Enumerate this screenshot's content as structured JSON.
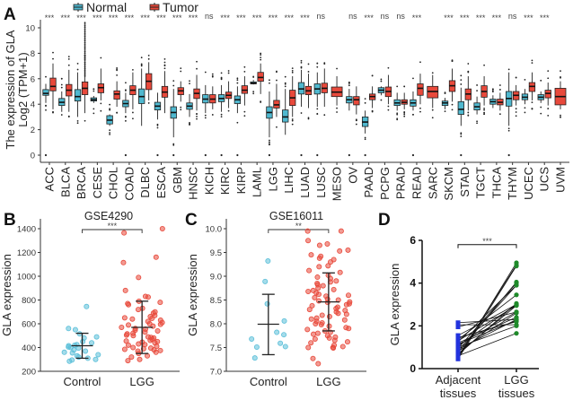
{
  "chart_data": [
    {
      "panel": "A",
      "type": "box",
      "title": "",
      "xlabel": "",
      "ylabel": "The expression of GLA\nLog2 (TPM+1)",
      "ylabel_lines": [
        "The expression of GLA",
        "Log2 (TPM+1)"
      ],
      "ylim": [
        0,
        11
      ],
      "yticks": [
        0,
        2,
        4,
        6,
        8,
        10
      ],
      "legend": {
        "position": "top",
        "entries": [
          {
            "name": "Normal",
            "color": "#4fb8cf"
          },
          {
            "name": "Tumor",
            "color": "#e8493b"
          }
        ]
      },
      "categories": [
        "ACC",
        "BLCA",
        "BRCA",
        "CESE",
        "CHOL",
        "COAD",
        "DLBC",
        "ESCA",
        "GBM",
        "HNSC",
        "KICH",
        "KIRC",
        "KIRP",
        "LAML",
        "LGG",
        "LIHC",
        "LUAD",
        "LUSC",
        "MESO",
        "OV",
        "PAAD",
        "PCPG",
        "PRAD",
        "READ",
        "SARC",
        "SKCM",
        "STAD",
        "TGCT",
        "THCA",
        "THYM",
        "UCEC",
        "UCS",
        "UVM"
      ],
      "significance": [
        "***",
        "***",
        "***",
        "***",
        "***",
        "***",
        "***",
        "***",
        "***",
        "***",
        "ns",
        "***",
        "***",
        "***",
        "***",
        "***",
        "***",
        "ns",
        "",
        "ns",
        "***",
        "ns",
        "ns",
        "***",
        "",
        "***",
        "***",
        "***",
        "***",
        "ns",
        "***",
        "***",
        ""
      ],
      "series": [
        {
          "name": "Normal",
          "boxes": [
            {
              "q1": 4.7,
              "median": 4.85,
              "q3": 5.15,
              "wlo": 4.1,
              "whi": 5.6
            },
            {
              "q1": 3.9,
              "median": 4.15,
              "q3": 4.45,
              "wlo": 3.4,
              "whi": 5.0
            },
            {
              "q1": 4.25,
              "median": 4.6,
              "q3": 5.15,
              "wlo": 3.0,
              "whi": 6.5
            },
            {
              "q1": 4.25,
              "median": 4.35,
              "q3": 4.5,
              "wlo": 4.1,
              "whi": 4.65
            },
            {
              "q1": 2.45,
              "median": 2.75,
              "q3": 3.1,
              "wlo": 2.3,
              "whi": 3.2
            },
            {
              "q1": 3.8,
              "median": 4.05,
              "q3": 4.3,
              "wlo": 3.3,
              "whi": 4.9
            },
            {
              "q1": 4.05,
              "median": 4.6,
              "q3": 5.2,
              "wlo": 2.3,
              "whi": 6.8
            },
            {
              "q1": 3.55,
              "median": 3.85,
              "q3": 4.15,
              "wlo": 2.8,
              "whi": 4.9
            },
            {
              "q1": 2.9,
              "median": 3.35,
              "q3": 3.8,
              "wlo": 1.4,
              "whi": 5.2
            },
            {
              "q1": 3.6,
              "median": 3.85,
              "q3": 4.1,
              "wlo": 3.0,
              "whi": 4.8
            },
            {
              "q1": 4.1,
              "median": 4.4,
              "q3": 4.75,
              "wlo": 3.3,
              "whi": 5.5
            },
            {
              "q1": 4.2,
              "median": 4.45,
              "q3": 4.75,
              "wlo": 3.4,
              "whi": 5.5
            },
            {
              "q1": 4.05,
              "median": 4.35,
              "q3": 4.65,
              "wlo": 3.3,
              "whi": 5.4
            },
            {
              "q1": 5.6,
              "median": 5.65,
              "q3": 5.75,
              "wlo": 5.55,
              "whi": 5.9
            },
            {
              "q1": 2.9,
              "median": 3.35,
              "q3": 3.8,
              "wlo": 1.4,
              "whi": 5.0
            },
            {
              "q1": 2.6,
              "median": 3.0,
              "q3": 3.55,
              "wlo": 1.6,
              "whi": 5.2
            },
            {
              "q1": 4.8,
              "median": 5.2,
              "q3": 5.7,
              "wlo": 3.8,
              "whi": 6.7
            },
            {
              "q1": 4.8,
              "median": 5.2,
              "q3": 5.6,
              "wlo": 3.8,
              "whi": 6.5
            },
            null,
            {
              "q1": 4.1,
              "median": 4.35,
              "q3": 4.6,
              "wlo": 3.5,
              "whi": 5.2
            },
            {
              "q1": 2.25,
              "median": 2.6,
              "q3": 3.0,
              "wlo": 1.7,
              "whi": 3.5
            },
            {
              "q1": 4.9,
              "median": 5.1,
              "q3": 5.3,
              "wlo": 4.7,
              "whi": 5.4
            },
            {
              "q1": 3.9,
              "median": 4.1,
              "q3": 4.35,
              "wlo": 3.5,
              "whi": 4.9
            },
            {
              "q1": 3.85,
              "median": 4.1,
              "q3": 4.35,
              "wlo": 3.5,
              "whi": 5.0
            },
            null,
            {
              "q1": 3.9,
              "median": 4.1,
              "q3": 4.25,
              "wlo": 3.6,
              "whi": 4.5
            },
            {
              "q1": 3.2,
              "median": 3.6,
              "q3": 4.2,
              "wlo": 2.3,
              "whi": 5.3
            },
            {
              "q1": 3.55,
              "median": 3.8,
              "q3": 4.1,
              "wlo": 3.2,
              "whi": 4.6
            },
            {
              "q1": 4.0,
              "median": 4.2,
              "q3": 4.4,
              "wlo": 3.7,
              "whi": 4.7
            },
            {
              "q1": 3.85,
              "median": 4.45,
              "q3": 5.0,
              "wlo": 2.3,
              "whi": 6.5
            },
            {
              "q1": 4.35,
              "median": 4.55,
              "q3": 4.8,
              "wlo": 4.0,
              "whi": 5.2
            },
            {
              "q1": 4.35,
              "median": 4.55,
              "q3": 4.75,
              "wlo": 4.1,
              "whi": 5.0
            },
            null
          ]
        },
        {
          "name": "Tumor",
          "boxes": [
            {
              "q1": 5.05,
              "median": 5.4,
              "q3": 6.05,
              "wlo": 3.6,
              "whi": 7.2
            },
            {
              "q1": 4.65,
              "median": 5.1,
              "q3": 5.55,
              "wlo": 3.4,
              "whi": 6.7
            },
            {
              "q1": 4.75,
              "median": 5.25,
              "q3": 5.75,
              "wlo": 3.3,
              "whi": 7.3
            },
            {
              "q1": 4.9,
              "median": 5.3,
              "q3": 5.6,
              "wlo": 4.3,
              "whi": 6.8
            },
            {
              "q1": 4.4,
              "median": 4.8,
              "q3": 5.05,
              "wlo": 3.8,
              "whi": 5.8
            },
            {
              "q1": 4.75,
              "median": 5.1,
              "q3": 5.45,
              "wlo": 3.6,
              "whi": 6.5
            },
            {
              "q1": 5.15,
              "median": 5.8,
              "q3": 6.4,
              "wlo": 4.3,
              "whi": 7.3
            },
            {
              "q1": 4.55,
              "median": 4.95,
              "q3": 5.4,
              "wlo": 3.3,
              "whi": 6.6
            },
            {
              "q1": 4.75,
              "median": 5.05,
              "q3": 5.3,
              "wlo": 4.2,
              "whi": 5.8
            },
            {
              "q1": 4.45,
              "median": 4.85,
              "q3": 5.2,
              "wlo": 3.5,
              "whi": 6.3
            },
            {
              "q1": 4.1,
              "median": 4.4,
              "q3": 4.75,
              "wlo": 3.6,
              "whi": 5.4
            },
            {
              "q1": 4.45,
              "median": 4.7,
              "q3": 4.95,
              "wlo": 3.7,
              "whi": 5.8
            },
            {
              "q1": 4.85,
              "median": 5.1,
              "q3": 5.45,
              "wlo": 3.9,
              "whi": 6.2
            },
            {
              "q1": 5.8,
              "median": 6.1,
              "q3": 6.5,
              "wlo": 4.8,
              "whi": 7.2
            },
            {
              "q1": 3.7,
              "median": 3.95,
              "q3": 4.3,
              "wlo": 3.0,
              "whi": 5.6
            },
            {
              "q1": 3.9,
              "median": 4.5,
              "q3": 5.1,
              "wlo": 3.0,
              "whi": 6.2
            },
            {
              "q1": 4.75,
              "median": 5.05,
              "q3": 5.4,
              "wlo": 3.7,
              "whi": 6.4
            },
            {
              "q1": 4.9,
              "median": 5.25,
              "q3": 5.65,
              "wlo": 3.8,
              "whi": 6.8
            },
            {
              "q1": 4.6,
              "median": 4.95,
              "q3": 5.35,
              "wlo": 3.9,
              "whi": 6.2
            },
            {
              "q1": 3.95,
              "median": 4.35,
              "q3": 4.6,
              "wlo": 3.2,
              "whi": 5.4
            },
            {
              "q1": 4.35,
              "median": 4.6,
              "q3": 4.8,
              "wlo": 3.7,
              "whi": 5.4
            },
            {
              "q1": 4.6,
              "median": 5.0,
              "q3": 5.35,
              "wlo": 4.0,
              "whi": 6.3
            },
            {
              "q1": 4.0,
              "median": 4.15,
              "q3": 4.35,
              "wlo": 3.6,
              "whi": 4.9
            },
            {
              "q1": 4.7,
              "median": 5.25,
              "q3": 5.6,
              "wlo": 4.0,
              "whi": 6.4
            },
            {
              "q1": 4.5,
              "median": 5.0,
              "q3": 5.4,
              "wlo": 3.7,
              "whi": 6.3
            },
            {
              "q1": 5.0,
              "median": 5.45,
              "q3": 5.85,
              "wlo": 4.2,
              "whi": 6.8
            },
            {
              "q1": 4.35,
              "median": 4.8,
              "q3": 5.2,
              "wlo": 3.5,
              "whi": 6.2
            },
            {
              "q1": 4.55,
              "median": 5.0,
              "q3": 5.45,
              "wlo": 3.9,
              "whi": 6.2
            },
            {
              "q1": 3.95,
              "median": 4.15,
              "q3": 4.4,
              "wlo": 3.5,
              "whi": 4.9
            },
            {
              "q1": 4.35,
              "median": 4.7,
              "q3": 5.0,
              "wlo": 3.9,
              "whi": 5.5
            },
            {
              "q1": 5.0,
              "median": 5.4,
              "q3": 5.7,
              "wlo": 4.3,
              "whi": 6.5
            },
            {
              "q1": 4.5,
              "median": 4.85,
              "q3": 5.1,
              "wlo": 3.9,
              "whi": 5.7
            },
            {
              "q1": 3.95,
              "median": 4.6,
              "q3": 5.25,
              "wlo": 3.6,
              "whi": 5.8
            }
          ]
        }
      ]
    },
    {
      "panel": "B",
      "type": "scatter",
      "title": "GSE4290",
      "xlabel": "",
      "ylabel": "GLA expression",
      "ylim": [
        200,
        1450
      ],
      "yticks": [
        200,
        400,
        600,
        800,
        1000,
        1200,
        1400
      ],
      "categories": [
        "Control",
        "LGG"
      ],
      "significance": "***",
      "series": [
        {
          "name": "Control",
          "color": "#5bbfd9",
          "mean": 415,
          "sd_low": 310,
          "sd_high": 520,
          "values": [
            745,
            560,
            550,
            515,
            490,
            480,
            450,
            440,
            425,
            420,
            415,
            405,
            400,
            395,
            380,
            370,
            360,
            355,
            340,
            330,
            320,
            310,
            300,
            295,
            285
          ]
        },
        {
          "name": "LGG",
          "color": "#e8493b",
          "mean": 570,
          "sd_low": 350,
          "sd_high": 790,
          "values": [
            1400,
            1365,
            1160,
            1115,
            990,
            880,
            830,
            825,
            790,
            780,
            770,
            760,
            730,
            720,
            700,
            690,
            670,
            660,
            650,
            645,
            640,
            630,
            620,
            610,
            600,
            595,
            590,
            580,
            570,
            560,
            555,
            545,
            540,
            530,
            520,
            515,
            505,
            500,
            490,
            485,
            480,
            470,
            460,
            455,
            450,
            445,
            440,
            430,
            425,
            420,
            410,
            400,
            395,
            390,
            385,
            380,
            375,
            370,
            360,
            350,
            330,
            320,
            300,
            290
          ]
        }
      ]
    },
    {
      "panel": "C",
      "type": "scatter",
      "title": "GSE16011",
      "xlabel": "",
      "ylabel": "GLA expression",
      "ylim": [
        7.0,
        10.0
      ],
      "yticks": [
        7.0,
        7.5,
        8.0,
        8.5,
        9.0,
        9.5,
        10.0
      ],
      "categories": [
        "Control",
        "LGG"
      ],
      "significance": "**",
      "series": [
        {
          "name": "Control",
          "color": "#5bbfd9",
          "mean": 7.99,
          "sd_low": 7.35,
          "sd_high": 8.62,
          "values": [
            9.32,
            8.89,
            8.42,
            8.06,
            7.82,
            7.77,
            7.68,
            7.59,
            7.52,
            7.51,
            7.28
          ]
        },
        {
          "name": "LGG",
          "color": "#e8493b",
          "mean": 8.46,
          "sd_low": 7.85,
          "sd_high": 9.07,
          "values": [
            9.95,
            9.95,
            9.75,
            9.68,
            9.65,
            9.55,
            9.53,
            9.45,
            9.42,
            9.38,
            9.35,
            9.3,
            9.22,
            9.2,
            9.12,
            9.08,
            9.02,
            8.98,
            8.95,
            8.9,
            8.88,
            8.85,
            8.82,
            8.8,
            8.75,
            8.72,
            8.7,
            8.68,
            8.65,
            8.62,
            8.6,
            8.58,
            8.55,
            8.52,
            8.5,
            8.48,
            8.46,
            8.45,
            8.42,
            8.4,
            8.38,
            8.35,
            8.32,
            8.3,
            8.28,
            8.25,
            8.22,
            8.2,
            8.18,
            8.15,
            8.12,
            8.1,
            8.08,
            8.05,
            8.02,
            8.0,
            7.98,
            7.95,
            7.92,
            7.9,
            7.88,
            7.85,
            7.82,
            7.8,
            7.78,
            7.75,
            7.72,
            7.7,
            7.68,
            7.65,
            7.62,
            7.6,
            7.55,
            7.52,
            7.5,
            7.5,
            7.49,
            7.27,
            7.16
          ]
        }
      ]
    },
    {
      "panel": "D",
      "type": "paired-line",
      "title": "",
      "xlabel": "",
      "ylabel": "GLA expression",
      "ylim": [
        0,
        6
      ],
      "yticks": [
        0,
        2,
        4,
        6
      ],
      "categories": [
        "Adjacent\ntissues",
        "LGG\ntissues"
      ],
      "category_lines": [
        [
          "Adjacent",
          "tissues"
        ],
        [
          "LGG",
          "tissues"
        ]
      ],
      "significance": "***",
      "series": [
        {
          "name": "Adjacent tissues",
          "color": "#2233dd",
          "values": [
            2.15,
            2.05,
            1.95,
            1.55,
            1.45,
            1.35,
            1.3,
            1.25,
            1.2,
            1.15,
            1.1,
            1.05,
            1.0,
            0.95,
            0.9,
            0.85,
            0.8,
            0.75,
            0.7,
            0.65,
            0.6,
            0.55,
            0.5,
            0.45
          ]
        },
        {
          "name": "LGG tissues",
          "color": "#1f8a2a",
          "values": [
            2.3,
            2.05,
            2.65,
            3.0,
            2.2,
            3.45,
            2.95,
            3.9,
            2.4,
            2.25,
            2.65,
            3.0,
            2.0,
            4.0,
            2.3,
            3.9,
            2.6,
            4.05,
            2.95,
            3.05,
            1.65,
            4.85,
            4.95,
            4.8
          ]
        }
      ]
    }
  ],
  "panels": {
    "A": {
      "letter": "A"
    },
    "B": {
      "letter": "B"
    },
    "C": {
      "letter": "C"
    },
    "D": {
      "letter": "D"
    }
  }
}
